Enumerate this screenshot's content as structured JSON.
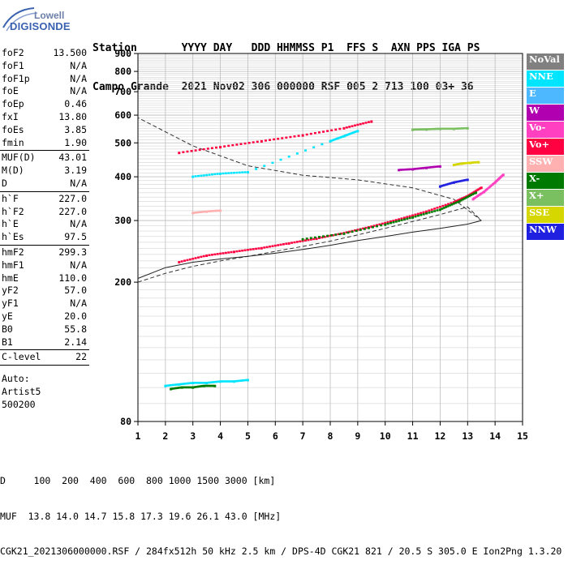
{
  "logo": {
    "top": "Lowell",
    "bottom": "DIGISONDE"
  },
  "header": {
    "line1": "Station       YYYY DAY   DDD HHMMSS P1  FFS S  AXN PPS IGA PS",
    "line2": "Campo Grande  2021 Nov02 306 000000 RSF 005 2 713 100 03+ 36"
  },
  "params": [
    {
      "label": "foF2",
      "value": "13.500"
    },
    {
      "label": "foF1",
      "value": "N/A"
    },
    {
      "label": "foF1p",
      "value": "N/A"
    },
    {
      "label": "foE",
      "value": "N/A"
    },
    {
      "label": "foEp",
      "value": "0.46"
    },
    {
      "label": "fxI",
      "value": "13.80"
    },
    {
      "label": "foEs",
      "value": "3.85"
    },
    {
      "label": "fmin",
      "value": "1.90"
    },
    {
      "label": "MUF(D)",
      "value": "43.01"
    },
    {
      "label": "M(D)",
      "value": "3.19"
    },
    {
      "label": "D",
      "value": "N/A"
    },
    {
      "label": "h`F",
      "value": "227.0"
    },
    {
      "label": "h`F2",
      "value": "227.0"
    },
    {
      "label": "h`E",
      "value": "N/A"
    },
    {
      "label": "h`Es",
      "value": "97.5"
    },
    {
      "label": "hmF2",
      "value": "299.3"
    },
    {
      "label": "hmF1",
      "value": "N/A"
    },
    {
      "label": "hmE",
      "value": "110.0"
    },
    {
      "label": "yF2",
      "value": "57.0"
    },
    {
      "label": "yF1",
      "value": "N/A"
    },
    {
      "label": "yE",
      "value": "20.0"
    },
    {
      "label": "B0",
      "value": "55.8"
    },
    {
      "label": "B1",
      "value": "2.14"
    },
    {
      "label": "C-level",
      "value": "22"
    }
  ],
  "auto": [
    "Auto:",
    "Artist5",
    "500200"
  ],
  "legend": [
    {
      "label": "NoVal",
      "color": "#808080"
    },
    {
      "label": "NNE",
      "color": "#00e5ff"
    },
    {
      "label": "E",
      "color": "#4db8ff"
    },
    {
      "label": "W",
      "color": "#b000b0"
    },
    {
      "label": "Vo-",
      "color": "#ff40c0"
    },
    {
      "label": "Vo+",
      "color": "#ff0040"
    },
    {
      "label": "SSW",
      "color": "#ffb0b0"
    },
    {
      "label": "X-",
      "color": "#007a00"
    },
    {
      "label": "X+",
      "color": "#7ac060"
    },
    {
      "label": "SSE",
      "color": "#d6d600"
    },
    {
      "label": "NNW",
      "color": "#2020e0"
    }
  ],
  "footer": {
    "line1": "D     100  200  400  600  800 1000 1500 3000 [km]",
    "line2": "MUF  13.8 14.0 14.7 15.8 17.3 19.6 26.1 43.0 [MHz]",
    "line3": "CGK21_2021306000000.RSF / 284fx512h 50 kHz 2.5 km / DPS-4D CGK21 821 / 20.5 S 305.0 E Ion2Png 1.3.20"
  },
  "chart_data": {
    "type": "scatter",
    "xlim": [
      1,
      15
    ],
    "ylim": [
      80,
      900
    ],
    "y_scale": "log",
    "xticks": [
      1,
      2,
      3,
      4,
      5,
      6,
      7,
      8,
      9,
      10,
      11,
      12,
      13,
      14,
      15
    ],
    "yticks": [
      80,
      200,
      300,
      400,
      500,
      600,
      700,
      800,
      900
    ],
    "grid": true,
    "legend_position": "right",
    "traces": [
      {
        "name": "Vo+",
        "x": [
          2.5,
          3.5,
          4.5,
          5.5,
          6.5,
          7.5,
          8.5,
          9.5,
          10.5,
          11.5,
          12.5,
          13.0,
          13.5
        ],
        "y": [
          228,
          238,
          244,
          250,
          258,
          266,
          276,
          288,
          302,
          318,
          338,
          352,
          372
        ]
      },
      {
        "name": "Vo+",
        "x": [
          2.5,
          4,
          5.5,
          7,
          8.5,
          9.5
        ],
        "y": [
          468,
          486,
          505,
          525,
          550,
          575
        ]
      },
      {
        "name": "Vo-",
        "x": [
          13.2,
          13.6,
          14.0,
          14.3
        ],
        "y": [
          345,
          362,
          385,
          405
        ]
      },
      {
        "name": "X-",
        "x": [
          7,
          8.5,
          10,
          11,
          12,
          12.7,
          13.3
        ],
        "y": [
          265,
          275,
          292,
          306,
          322,
          340,
          360
        ]
      },
      {
        "name": "NNE",
        "x": [
          3,
          4,
          5,
          8,
          8.5,
          9
        ],
        "y": [
          400,
          408,
          412,
          505,
          522,
          540
        ]
      },
      {
        "name": "W",
        "x": [
          10.5,
          11,
          11.5,
          12
        ],
        "y": [
          418,
          420,
          424,
          428
        ]
      },
      {
        "name": "SSE",
        "x": [
          12.5,
          12.8,
          13.1,
          13.4
        ],
        "y": [
          432,
          436,
          438,
          440
        ]
      },
      {
        "name": "NNW",
        "x": [
          12.0,
          12.5,
          13.0
        ],
        "y": [
          375,
          385,
          392
        ]
      },
      {
        "name": "SSW",
        "x": [
          3.0,
          3.5,
          4.0
        ],
        "y": [
          315,
          318,
          320
        ]
      },
      {
        "name": "X+",
        "x": [
          11,
          11.5,
          12,
          12.5,
          13
        ],
        "y": [
          545,
          546,
          548,
          548,
          550
        ]
      },
      {
        "name": "NNE",
        "x": [
          2.0,
          2.5,
          3.0,
          3.5,
          4.0,
          4.5,
          5.0
        ],
        "y": [
          101,
          102,
          103,
          103,
          104,
          104,
          105
        ]
      },
      {
        "name": "X-",
        "x": [
          2.2,
          2.6,
          3.0,
          3.4,
          3.8
        ],
        "y": [
          99,
          100,
          100,
          101,
          101
        ]
      }
    ],
    "profile_solid": {
      "x": [
        1,
        2,
        3,
        4,
        5,
        6,
        7,
        8,
        9,
        10,
        11,
        12,
        13,
        13.5
      ],
      "y": [
        205,
        220,
        228,
        233,
        237,
        242,
        248,
        255,
        263,
        270,
        278,
        285,
        293,
        300
      ]
    },
    "profile_dashed": {
      "x": [
        1,
        2,
        3,
        4,
        5,
        6,
        7,
        8,
        9,
        10,
        11,
        12,
        13,
        13.5,
        12.5,
        11,
        9,
        7,
        5,
        3,
        1
      ],
      "y": [
        200,
        212,
        222,
        230,
        237,
        245,
        253,
        262,
        273,
        285,
        298,
        312,
        328,
        300,
        345,
        372,
        392,
        404,
        430,
        490,
        590
      ]
    }
  }
}
